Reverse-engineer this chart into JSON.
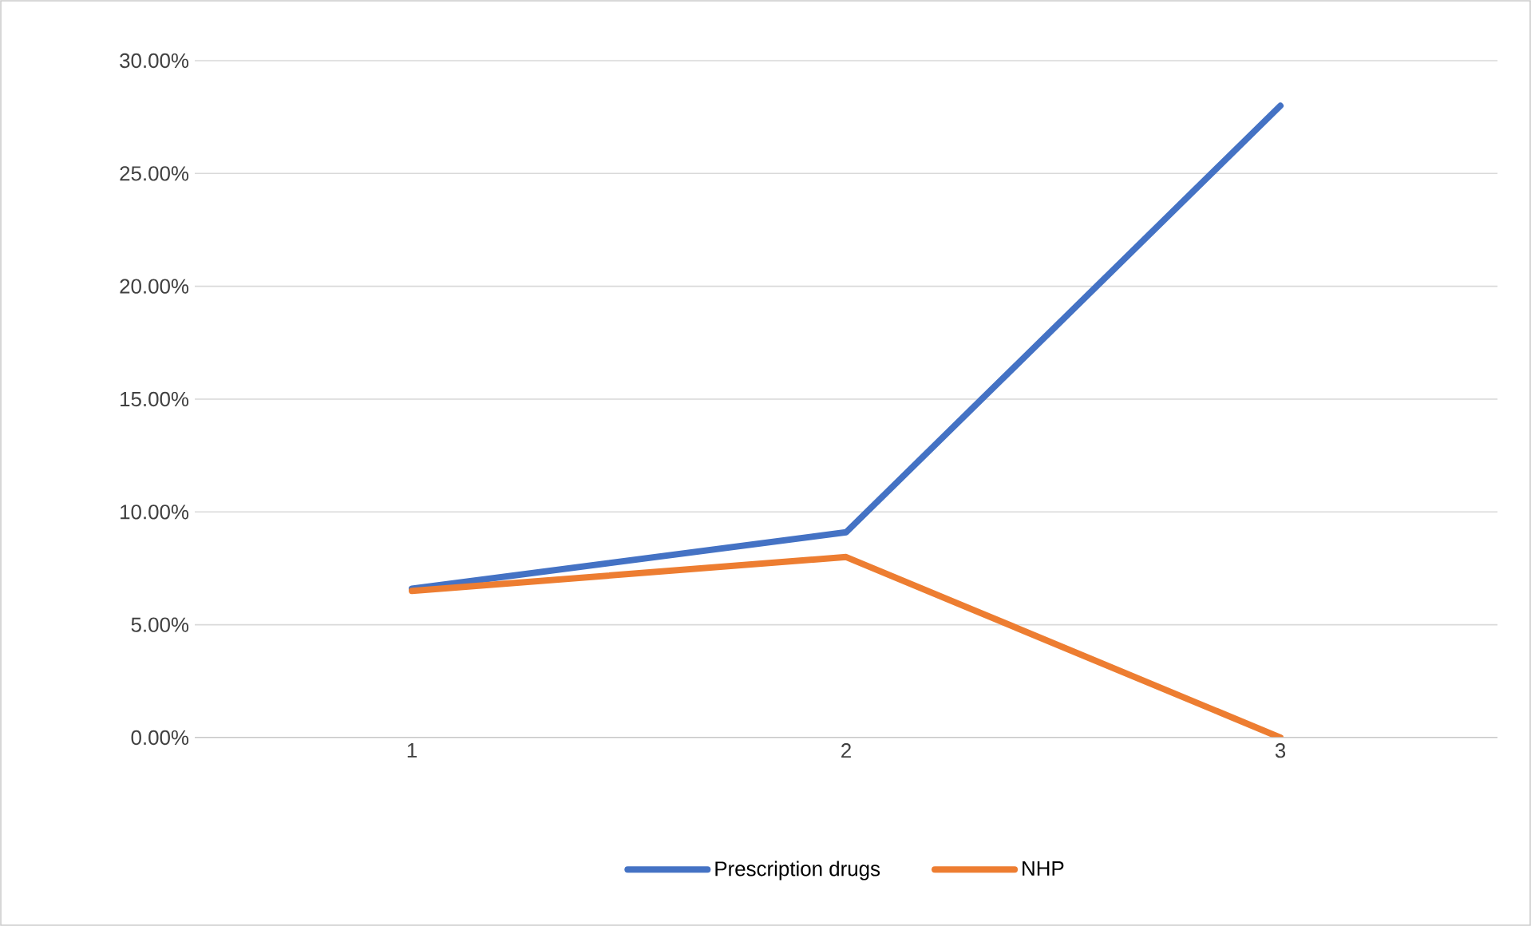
{
  "chart_data": {
    "type": "line",
    "categories": [
      "1",
      "2",
      "3"
    ],
    "series": [
      {
        "name": "Prescription drugs",
        "color": "#4472c4",
        "values": [
          6.6,
          9.1,
          28.0
        ]
      },
      {
        "name": "NHP",
        "color": "#ed7d31",
        "values": [
          6.5,
          8.0,
          0.0
        ]
      }
    ],
    "ylim": [
      0,
      30
    ],
    "yticks": [
      {
        "value": 0,
        "label": "0.00%"
      },
      {
        "value": 5,
        "label": "5.00%"
      },
      {
        "value": 10,
        "label": "10.00%"
      },
      {
        "value": 15,
        "label": "15.00%"
      },
      {
        "value": 20,
        "label": "20.00%"
      },
      {
        "value": 25,
        "label": "25.00%"
      },
      {
        "value": 30,
        "label": "30.00%"
      }
    ],
    "grid": "y",
    "legend": "bottom",
    "marker": "none",
    "line_style": "solid"
  }
}
